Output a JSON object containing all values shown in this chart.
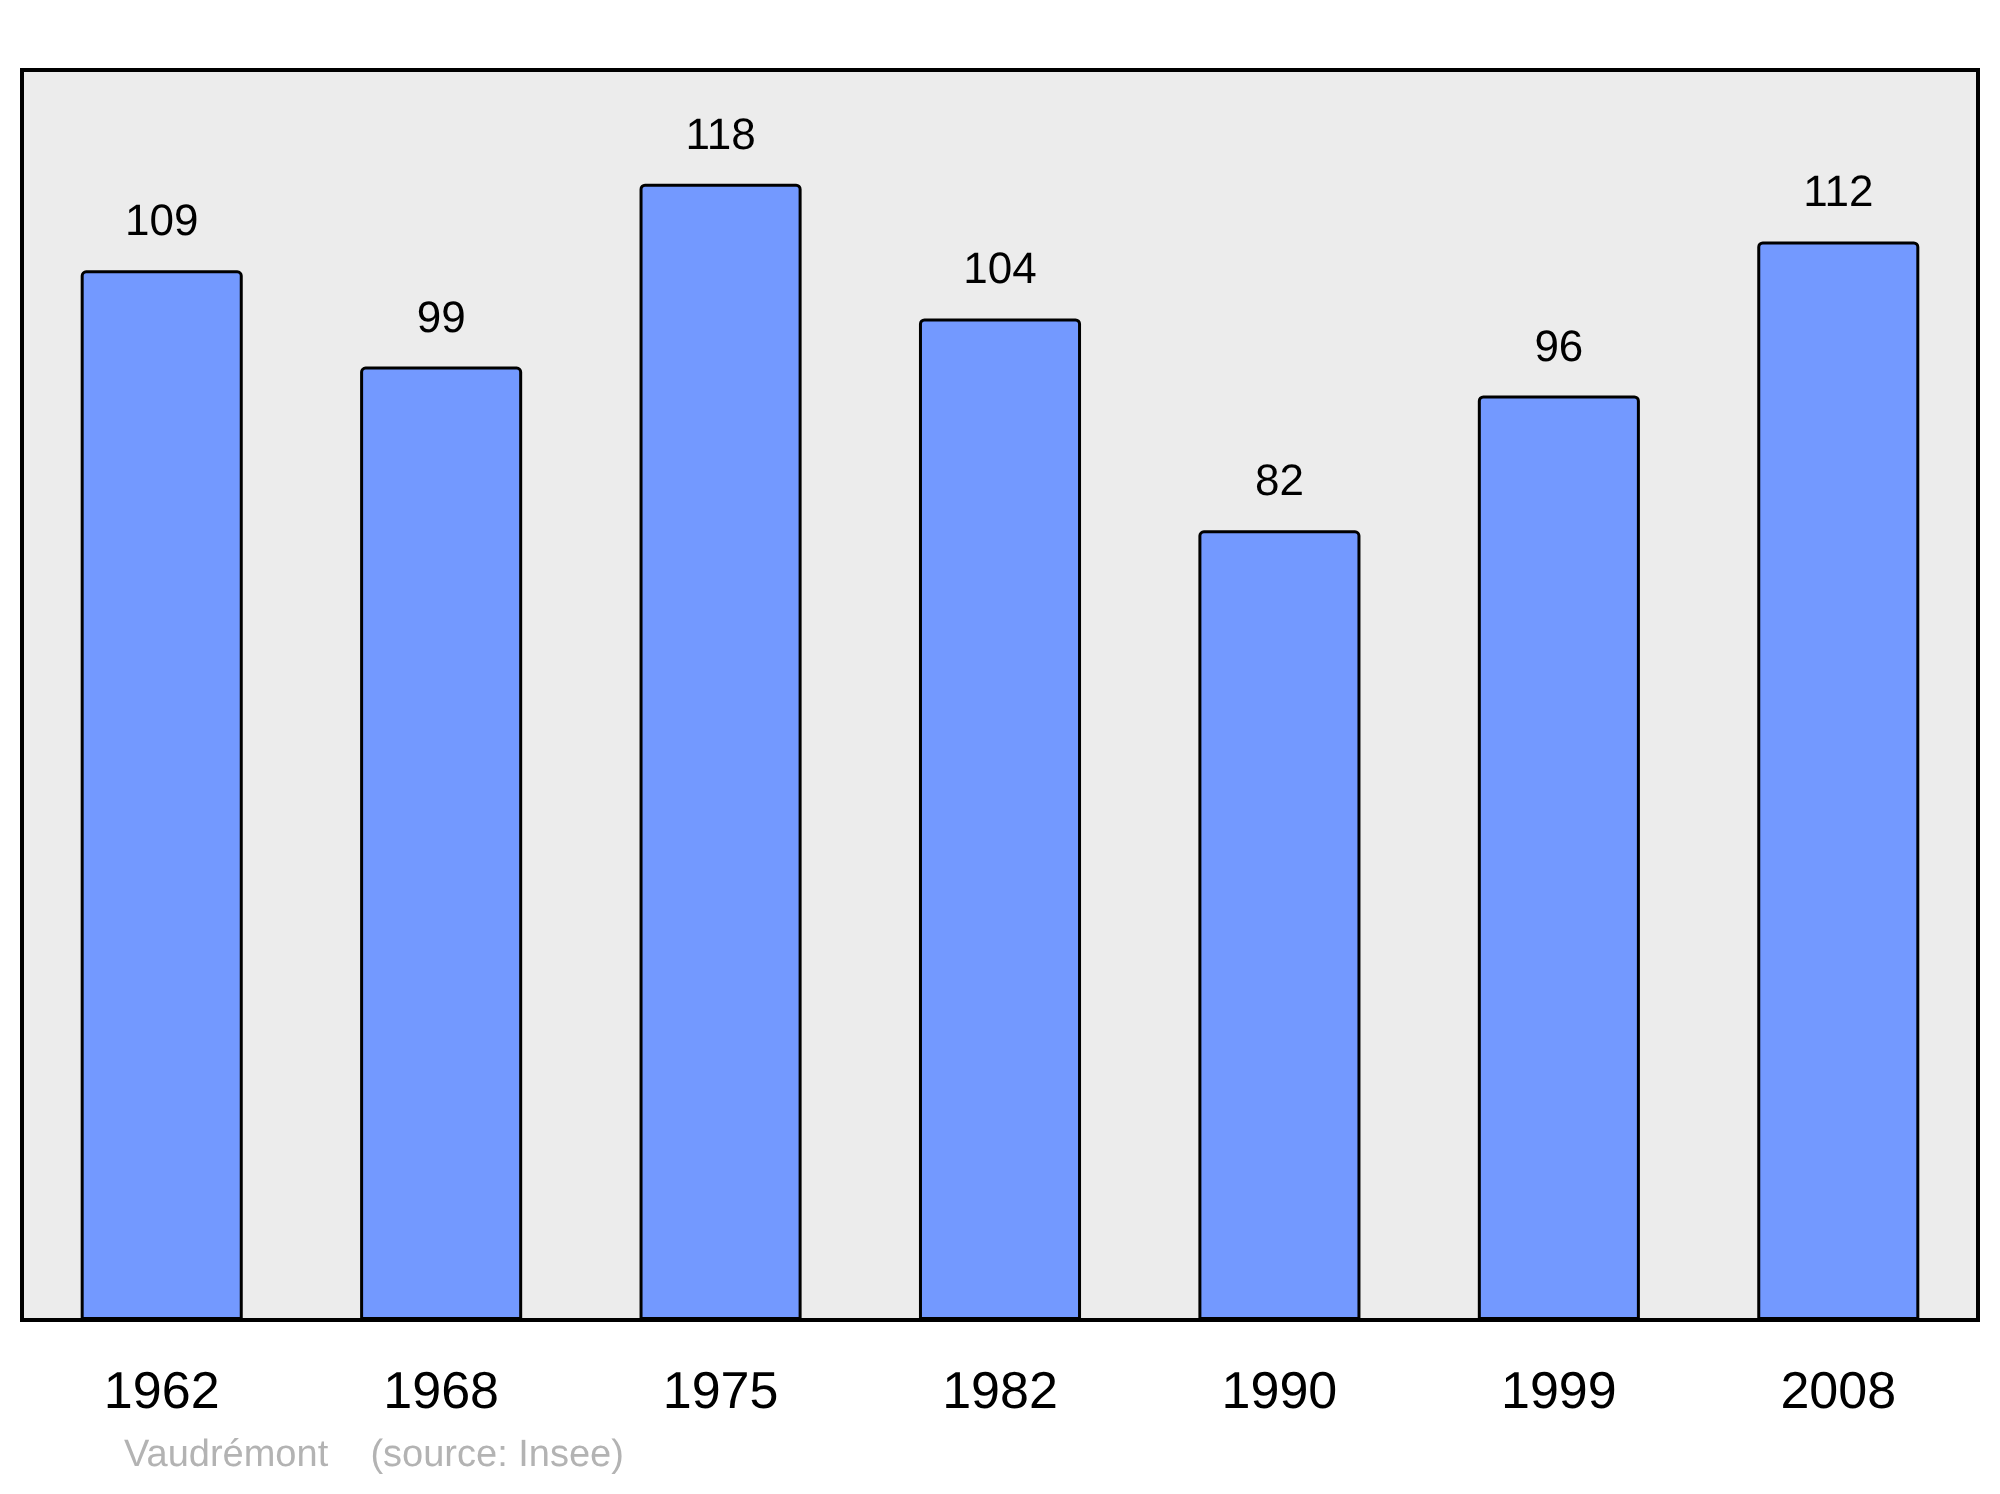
{
  "chart_data": {
    "type": "bar",
    "categories": [
      "1962",
      "1968",
      "1975",
      "1982",
      "1990",
      "1999",
      "2008"
    ],
    "values": [
      109,
      99,
      118,
      104,
      82,
      96,
      112
    ],
    "color": "#7399ff",
    "data_labels": true,
    "annotations": [
      "Vaudrémont    (source: Insee)"
    ]
  }
}
